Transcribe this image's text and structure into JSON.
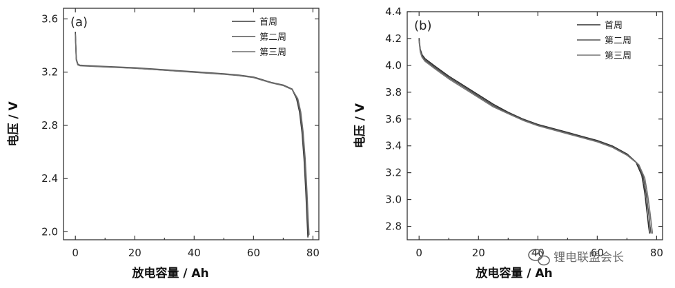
{
  "chart_data": [
    {
      "type": "line",
      "panel_label": "(a)",
      "xlabel": "放电容量 / Ah",
      "ylabel": "电压 / V",
      "xlim": [
        -4,
        82
      ],
      "ylim": [
        1.94,
        3.68
      ],
      "xticks": [
        0,
        20,
        40,
        60,
        80
      ],
      "yticks": [
        2.0,
        2.4,
        2.8,
        3.2,
        3.6
      ],
      "ytick_labels": [
        "2.0",
        "2.4",
        "2.8",
        "3.2",
        "3.6"
      ],
      "legend_position": "top-right",
      "series": [
        {
          "name": "首周",
          "color": "#3a3a3a",
          "x": [
            0,
            0.3,
            0.8,
            1.5,
            5,
            10,
            20,
            30,
            40,
            50,
            55,
            60,
            63,
            66,
            70,
            73,
            74.5,
            75.5,
            76.3,
            77,
            77.6,
            78.0,
            78.3
          ],
          "y": [
            3.5,
            3.3,
            3.26,
            3.25,
            3.245,
            3.24,
            3.23,
            3.215,
            3.2,
            3.185,
            3.175,
            3.16,
            3.14,
            3.12,
            3.1,
            3.07,
            3.0,
            2.9,
            2.75,
            2.55,
            2.3,
            2.1,
            1.96
          ]
        },
        {
          "name": "第二周",
          "color": "#555555",
          "x": [
            0,
            0.3,
            0.8,
            1.5,
            5,
            10,
            20,
            30,
            40,
            50,
            55,
            60,
            63,
            66,
            70,
            73,
            74.7,
            75.7,
            76.5,
            77.2,
            77.8,
            78.2,
            78.5
          ],
          "y": [
            3.49,
            3.3,
            3.26,
            3.252,
            3.248,
            3.243,
            3.233,
            3.218,
            3.203,
            3.188,
            3.178,
            3.163,
            3.143,
            3.123,
            3.103,
            3.073,
            3.0,
            2.9,
            2.75,
            2.55,
            2.3,
            2.1,
            1.97
          ]
        },
        {
          "name": "第三周",
          "color": "#6e6e6e",
          "x": [
            0,
            0.3,
            0.8,
            1.5,
            5,
            10,
            20,
            30,
            40,
            50,
            55,
            60,
            63,
            66,
            70,
            73,
            74.9,
            75.9,
            76.7,
            77.4,
            78.0,
            78.4,
            78.7
          ],
          "y": [
            3.48,
            3.29,
            3.255,
            3.248,
            3.244,
            3.239,
            3.229,
            3.214,
            3.199,
            3.184,
            3.174,
            3.159,
            3.139,
            3.119,
            3.099,
            3.069,
            3.0,
            2.9,
            2.75,
            2.55,
            2.3,
            2.1,
            1.98
          ]
        }
      ]
    },
    {
      "type": "line",
      "panel_label": "(b)",
      "xlabel": "放电容量 / Ah",
      "ylabel": "电压 / V",
      "xlim": [
        -4,
        82
      ],
      "ylim": [
        2.7,
        4.4
      ],
      "xticks": [
        0,
        20,
        40,
        60,
        80
      ],
      "xtick_labels": [
        "0",
        "20",
        "40",
        "60",
        "80"
      ],
      "yticks": [
        2.8,
        3.0,
        3.2,
        3.4,
        3.6,
        3.8,
        4.0,
        4.2,
        4.4
      ],
      "ytick_labels": [
        "2.8",
        "3.0",
        "3.2",
        "3.4",
        "3.6",
        "3.8",
        "4.0",
        "4.2",
        "4.4"
      ],
      "legend_position": "top-right",
      "series": [
        {
          "name": "首周",
          "color": "#2e2e2e",
          "x": [
            0,
            0.4,
            1,
            2,
            5,
            10,
            15,
            20,
            25,
            30,
            35,
            40,
            45,
            50,
            55,
            60,
            65,
            70,
            73,
            75,
            76,
            76.8,
            77.3,
            77.6
          ],
          "y": [
            4.2,
            4.12,
            4.08,
            4.05,
            4.0,
            3.92,
            3.85,
            3.78,
            3.71,
            3.65,
            3.6,
            3.56,
            3.53,
            3.5,
            3.47,
            3.44,
            3.4,
            3.34,
            3.28,
            3.18,
            3.05,
            2.9,
            2.8,
            2.75
          ]
        },
        {
          "name": "第二周",
          "color": "#505050",
          "x": [
            0,
            0.4,
            1,
            2,
            5,
            10,
            15,
            20,
            25,
            30,
            35,
            40,
            45,
            50,
            55,
            60,
            65,
            70,
            73.5,
            75.5,
            76.5,
            77.3,
            77.8,
            78.1
          ],
          "y": [
            4.19,
            4.11,
            4.07,
            4.04,
            3.99,
            3.91,
            3.84,
            3.77,
            3.7,
            3.645,
            3.595,
            3.555,
            3.525,
            3.495,
            3.465,
            3.435,
            3.395,
            3.335,
            3.27,
            3.17,
            3.04,
            2.9,
            2.8,
            2.75
          ]
        },
        {
          "name": "第三周",
          "color": "#747474",
          "x": [
            0,
            0.4,
            1,
            2,
            5,
            10,
            15,
            20,
            25,
            30,
            35,
            40,
            45,
            50,
            55,
            60,
            65,
            70,
            74,
            76,
            77,
            77.8,
            78.3,
            78.6
          ],
          "y": [
            4.18,
            4.1,
            4.06,
            4.03,
            3.98,
            3.9,
            3.83,
            3.76,
            3.69,
            3.64,
            3.59,
            3.55,
            3.52,
            3.49,
            3.46,
            3.43,
            3.39,
            3.33,
            3.26,
            3.16,
            3.03,
            2.9,
            2.8,
            2.75
          ]
        }
      ]
    }
  ],
  "watermark": {
    "text": "锂电联盟会长",
    "icon": "wechat-icon"
  }
}
